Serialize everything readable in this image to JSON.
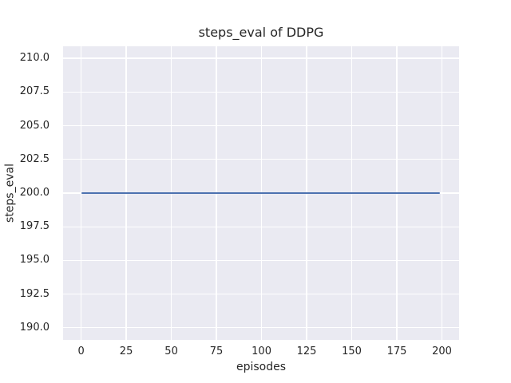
{
  "chart_data": {
    "type": "line",
    "title": "steps_eval of DDPG",
    "xlabel": "episodes",
    "ylabel": "steps_eval",
    "xlim": [
      -10,
      209.5
    ],
    "ylim": [
      189.1,
      210.9
    ],
    "xticks": [
      0,
      25,
      50,
      75,
      100,
      125,
      150,
      175,
      200
    ],
    "xtick_labels": [
      "0",
      "25",
      "50",
      "75",
      "100",
      "125",
      "150",
      "175",
      "200"
    ],
    "yticks": [
      190,
      192.5,
      195,
      197.5,
      200,
      202.5,
      205,
      207.5,
      210
    ],
    "ytick_labels": [
      "190.0",
      "192.5",
      "195.0",
      "197.5",
      "200.0",
      "202.5",
      "205.0",
      "207.5",
      "210.0"
    ],
    "grid": true,
    "legend": false,
    "series": [
      {
        "name": "steps_eval",
        "x": [
          0,
          199
        ],
        "y": [
          200,
          200
        ],
        "color": "#4c72b0"
      }
    ],
    "style": {
      "figure_background": "#ffffff",
      "axes_background": "#eaeaf2",
      "grid_color": "#ffffff",
      "text_color": "#262626",
      "line_width": 2
    }
  }
}
